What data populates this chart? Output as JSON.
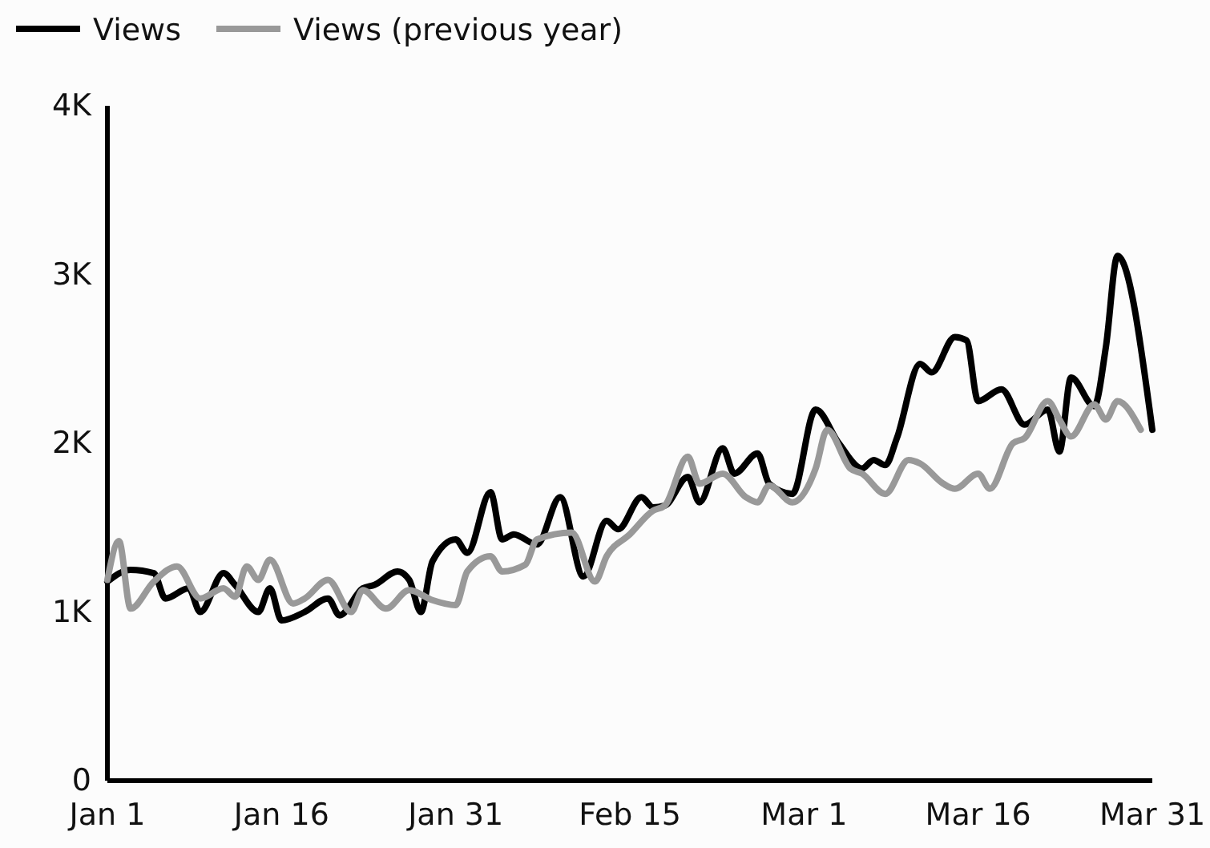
{
  "chart_data": {
    "type": "line",
    "xlim": [
      "--01-01",
      "--03-31"
    ],
    "xticks": [
      {
        "value": "--01-01",
        "label": "Jan 1"
      },
      {
        "value": "--01-16",
        "label": "Jan 16"
      },
      {
        "value": "--01-31",
        "label": "Jan 31"
      },
      {
        "value": "--02-15",
        "label": "Feb 15"
      },
      {
        "value": "--03-01",
        "label": "Mar 1"
      },
      {
        "value": "--03-16",
        "label": "Mar 16"
      },
      {
        "value": "--03-31",
        "label": "Mar 31"
      }
    ],
    "ylim": [
      0,
      4000
    ],
    "yticks": [
      0,
      {
        "value": 1000,
        "label": "1K"
      },
      {
        "value": 2000,
        "label": "2K"
      },
      {
        "value": 3000,
        "label": "3K"
      },
      {
        "value": 4000,
        "label": "4K"
      }
    ],
    "grid": false,
    "legend": "top left",
    "marker": "none",
    "line_style": "solid",
    "series": [
      {
        "name": "Views",
        "color": "#000000",
        "x": [
          "--01-01",
          "--01-03",
          "--01-05",
          "--01-06",
          "--01-08",
          "--01-09",
          "--01-11",
          "--01-12",
          "--01-14",
          "--01-15",
          "--01-16",
          "--01-18",
          "--01-20",
          "--01-21",
          "--01-23",
          "--01-24",
          "--01-26",
          "--01-27",
          "--01-28",
          "--01-29",
          "--01-31",
          "--02-01",
          "--02-03",
          "--02-04",
          "--02-05",
          "--02-07",
          "--02-09",
          "--02-11",
          "--02-13",
          "--02-14",
          "--02-16",
          "--02-17",
          "--02-18",
          "--02-20",
          "--02-21",
          "--02-23",
          "--02-24",
          "--02-26",
          "--02-27",
          "--02-29",
          "--03-02",
          "--03-04",
          "--03-06",
          "--03-07",
          "--03-08",
          "--03-09",
          "--03-11",
          "--03-12",
          "--03-14",
          "--03-15",
          "--03-16",
          "--03-18",
          "--03-20",
          "--03-22",
          "--03-23",
          "--03-24",
          "--03-26",
          "--03-27",
          "--03-28",
          "--03-31"
        ],
        "values": [
          1180,
          1250,
          1230,
          1080,
          1140,
          1000,
          1230,
          1160,
          1000,
          1140,
          950,
          1000,
          1080,
          980,
          1140,
          1160,
          1240,
          1190,
          1000,
          1300,
          1430,
          1350,
          1710,
          1430,
          1460,
          1400,
          1680,
          1210,
          1540,
          1490,
          1680,
          1620,
          1630,
          1800,
          1650,
          1970,
          1820,
          1940,
          1760,
          1700,
          2200,
          2000,
          1850,
          1900,
          1870,
          2030,
          2470,
          2420,
          2630,
          2610,
          2250,
          2320,
          2110,
          2200,
          1950,
          2390,
          2220,
          2570,
          3110,
          2080
        ]
      },
      {
        "name": "Views (previous year)",
        "color": "#999999",
        "x": [
          "--01-01",
          "--01-02",
          "--01-03",
          "--01-05",
          "--01-07",
          "--01-09",
          "--01-11",
          "--01-12",
          "--01-13",
          "--01-14",
          "--01-15",
          "--01-17",
          "--01-18",
          "--01-20",
          "--01-22",
          "--01-23",
          "--01-25",
          "--01-27",
          "--01-29",
          "--01-31",
          "--02-01",
          "--02-03",
          "--02-04",
          "--02-06",
          "--02-07",
          "--02-10",
          "--02-12",
          "--02-13",
          "--02-15",
          "--02-17",
          "--02-18",
          "--02-20",
          "--02-21",
          "--02-23",
          "--02-25",
          "--02-26",
          "--02-27",
          "--02-29",
          "--03-02",
          "--03-03",
          "--03-05",
          "--03-06",
          "--03-08",
          "--03-10",
          "--03-11",
          "--03-13",
          "--03-14",
          "--03-16",
          "--03-17",
          "--03-19",
          "--03-20",
          "--03-22",
          "--03-23",
          "--03-24",
          "--03-26",
          "--03-27",
          "--03-28",
          "--03-30"
        ],
        "values": [
          1190,
          1420,
          1020,
          1180,
          1270,
          1080,
          1140,
          1090,
          1270,
          1190,
          1310,
          1050,
          1080,
          1190,
          1000,
          1130,
          1020,
          1130,
          1070,
          1040,
          1240,
          1330,
          1240,
          1280,
          1430,
          1470,
          1180,
          1330,
          1460,
          1600,
          1630,
          1920,
          1760,
          1820,
          1680,
          1650,
          1750,
          1650,
          1850,
          2080,
          1850,
          1820,
          1700,
          1900,
          1880,
          1760,
          1730,
          1820,
          1730,
          2000,
          2030,
          2250,
          2140,
          2040,
          2230,
          2140,
          2250,
          2080
        ]
      }
    ]
  }
}
